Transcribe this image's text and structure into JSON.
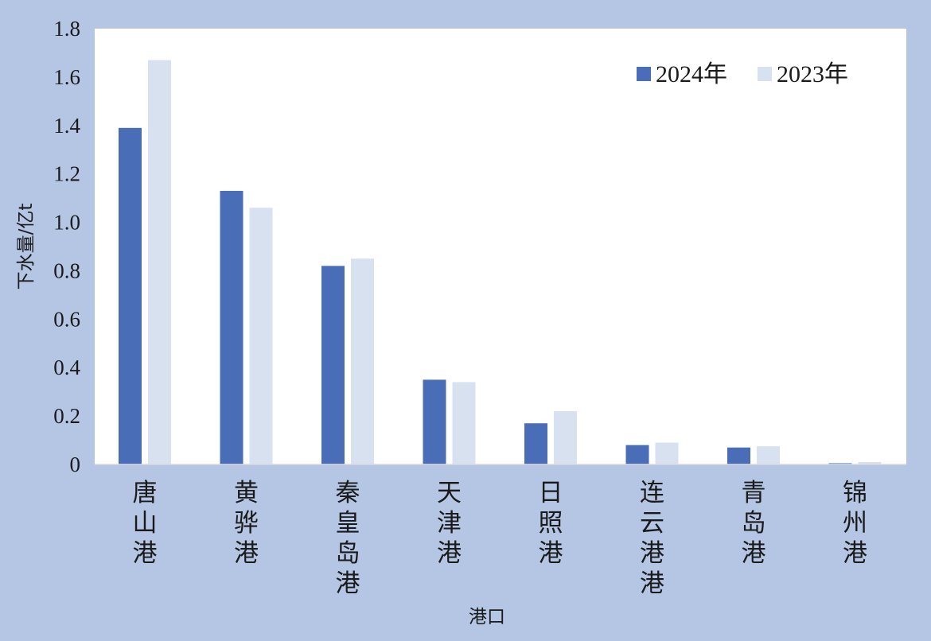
{
  "chart_data": {
    "type": "bar",
    "categories": [
      "唐山港",
      "黄骅港",
      "秦皇岛港",
      "天津港",
      "日照港",
      "连云港港",
      "青岛港",
      "锦州港"
    ],
    "series": [
      {
        "name": "2024年",
        "values": [
          1.39,
          1.13,
          0.82,
          0.35,
          0.17,
          0.08,
          0.07,
          0.005
        ],
        "color": "#4a6db8"
      },
      {
        "name": "2023年",
        "values": [
          1.67,
          1.06,
          0.85,
          0.34,
          0.22,
          0.09,
          0.075,
          0.01
        ],
        "color": "#d8e1f0"
      }
    ],
    "xlabel": "港口",
    "ylabel": "下水量/亿t",
    "ylim": [
      0,
      1.8
    ],
    "yticks": [
      "0",
      "0.2",
      "0.4",
      "0.6",
      "0.8",
      "1.0",
      "1.2",
      "1.4",
      "1.6",
      "1.8"
    ],
    "grid": false,
    "legend": "top-right",
    "plot_background": "#ffffff",
    "page_background": "#b4c6e4"
  }
}
